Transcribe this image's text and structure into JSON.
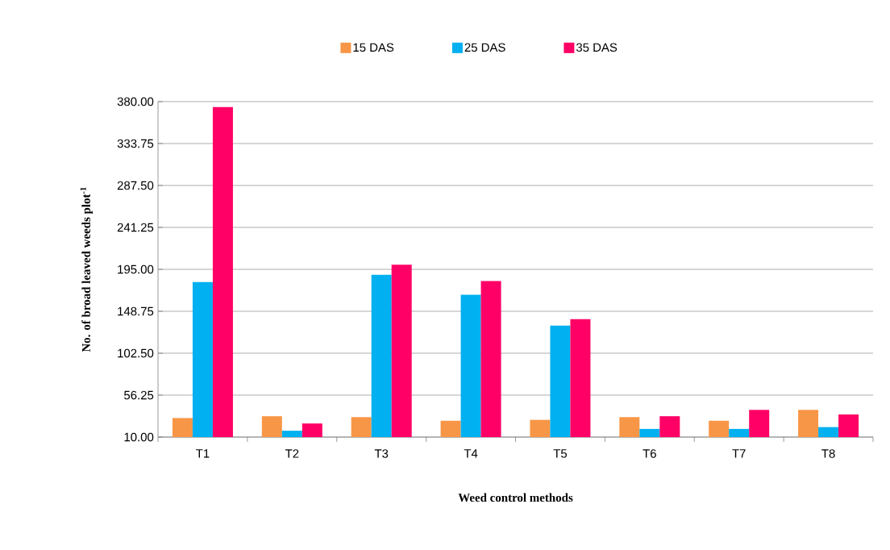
{
  "chart_data": {
    "type": "bar",
    "xlabel": "Weed control methods",
    "ylabel": "No. of  broad leaved weeds plot$^{-1}$",
    "categories": [
      "T1",
      "T2",
      "T3",
      "T4",
      "T5",
      "T6",
      "T7",
      "T8"
    ],
    "series": [
      {
        "name": "15 DAS",
        "color": "#f79646",
        "values": [
          31,
          33,
          32,
          28,
          29,
          32,
          28,
          40
        ]
      },
      {
        "name": "25 DAS",
        "color": "#00b0f0",
        "values": [
          181,
          17,
          189,
          167,
          133,
          19,
          19,
          21
        ]
      },
      {
        "name": "35 DAS",
        "color": "#ff0066",
        "values": [
          374,
          25,
          200,
          182,
          140,
          33,
          40,
          35
        ]
      }
    ],
    "ylim": [
      10,
      380
    ],
    "yticks": [
      {
        "value": 10,
        "label": "10.00"
      },
      {
        "value": 56.25,
        "label": "56.25"
      },
      {
        "value": 102.5,
        "label": "102.50"
      },
      {
        "value": 148.75,
        "label": "148.75"
      },
      {
        "value": 195,
        "label": "195.00"
      },
      {
        "value": 241.25,
        "label": "241.25"
      },
      {
        "value": 287.5,
        "label": "287.50"
      },
      {
        "value": 333.75,
        "label": "333.75"
      },
      {
        "value": 380,
        "label": "380.00"
      }
    ],
    "grid": "y",
    "legend": "top"
  }
}
